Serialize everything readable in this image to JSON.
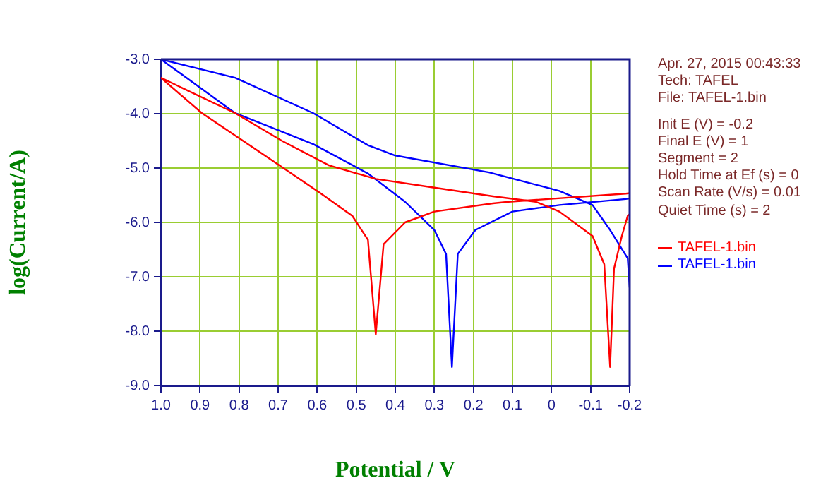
{
  "chart_data": {
    "type": "line",
    "xlabel": "Potential / V",
    "ylabel": "log(Current/A)",
    "xlim": [
      1.0,
      -0.2
    ],
    "xticks": [
      {
        "value": 1,
        "label": "1.0"
      },
      0.9,
      0.8,
      0.7,
      0.6,
      0.5,
      0.4,
      0.3,
      0.2,
      0.1,
      0,
      -0.1,
      -0.2
    ],
    "ylim": [
      -9,
      -3
    ],
    "yticks": [
      {
        "value": -3,
        "label": "-3.0"
      },
      {
        "value": -4,
        "label": "-4.0"
      },
      {
        "value": -5,
        "label": "-5.0"
      },
      {
        "value": -6,
        "label": "-6.0"
      },
      {
        "value": -7,
        "label": "-7.0"
      },
      {
        "value": -8,
        "label": "-8.0"
      },
      {
        "value": -9,
        "label": "-9.0"
      }
    ],
    "grid": true,
    "legend": "right",
    "marker": "none",
    "line_style": "solid",
    "annotations": [
      "Apr. 27, 2015   00:43:33",
      "Tech: TAFEL",
      "File: TAFEL-1.bin",
      "Init E (V) = -0.2",
      "Final E (V) = 1",
      "Segment = 2",
      "Hold Time at Ef (s) = 0",
      "Scan Rate (V/s) = 0.01",
      "Quiet Time (s) = 2"
    ],
    "series": [
      {
        "name": "TAFEL-1.bin",
        "color": "#ff0000",
        "x": [
          -0.2,
          -0.195,
          -0.18,
          -0.16,
          -0.15,
          -0.135,
          -0.105,
          -0.02,
          0.04,
          0.15,
          0.3,
          0.45,
          0.57,
          0.69,
          0.81,
          1.0,
          0.895,
          0.75,
          0.59,
          0.51,
          0.47,
          0.45,
          0.43,
          0.375,
          0.3,
          0.15,
          0.11,
          -0.19,
          -0.2
        ],
        "values": [
          -5.85,
          -5.88,
          -6.25,
          -6.85,
          -8.66,
          -6.77,
          -6.25,
          -5.8,
          -5.62,
          -5.52,
          -5.36,
          -5.2,
          -4.95,
          -4.5,
          -3.99,
          -3.34,
          -3.99,
          -4.69,
          -5.47,
          -5.88,
          -6.32,
          -8.06,
          -6.4,
          -6.0,
          -5.8,
          -5.65,
          -5.62,
          -5.47,
          -5.46
        ]
      },
      {
        "name": "TAFEL-1.bin",
        "color": "#0000ff",
        "x": [
          -0.2,
          -0.195,
          -0.15,
          -0.105,
          -0.02,
          0.16,
          0.4,
          0.47,
          0.61,
          0.81,
          1.0,
          0.81,
          0.61,
          0.47,
          0.375,
          0.3,
          0.27,
          0.255,
          0.24,
          0.195,
          0.1,
          -0.02,
          -0.19,
          -0.2
        ],
        "values": [
          -7.2,
          -6.66,
          -6.14,
          -5.68,
          -5.42,
          -5.08,
          -4.77,
          -4.58,
          -3.99,
          -3.34,
          -3.0,
          -3.99,
          -4.56,
          -5.1,
          -5.62,
          -6.14,
          -6.58,
          -8.66,
          -6.58,
          -6.14,
          -5.8,
          -5.68,
          -5.57,
          -5.56
        ]
      }
    ]
  }
}
